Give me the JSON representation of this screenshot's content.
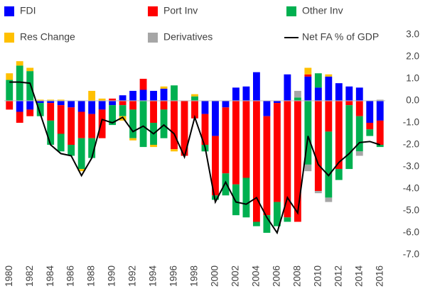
{
  "chart_data": {
    "type": "bar",
    "x": [
      1980,
      1981,
      1982,
      1983,
      1984,
      1985,
      1986,
      1987,
      1988,
      1989,
      1990,
      1991,
      1992,
      1993,
      1994,
      1995,
      1996,
      1997,
      1998,
      1999,
      2000,
      2001,
      2002,
      2003,
      2004,
      2005,
      2006,
      2007,
      2008,
      2009,
      2010,
      2011,
      2012,
      2013,
      2014,
      2015,
      2016
    ],
    "xlim": [
      1979.5,
      2016.5
    ],
    "xticks": [
      1980,
      1982,
      1984,
      1986,
      1988,
      1990,
      1992,
      1994,
      1996,
      1998,
      2000,
      2002,
      2004,
      2006,
      2008,
      2010,
      2012,
      2014,
      2016
    ],
    "ylim": [
      -7,
      3
    ],
    "yticks": [
      {
        "value": -7,
        "label": "-7.0"
      },
      {
        "value": -6,
        "label": "-6.0"
      },
      {
        "value": -5,
        "label": "-5.0"
      },
      {
        "value": -4,
        "label": "-4.0"
      },
      {
        "value": -3,
        "label": "-3.0"
      },
      {
        "value": -2,
        "label": "-2.0"
      },
      {
        "value": -1,
        "label": "-1.0"
      },
      {
        "value": 0,
        "label": "0.0"
      },
      {
        "value": 1,
        "label": "1.0"
      },
      {
        "value": 2,
        "label": "2.0"
      },
      {
        "value": 3,
        "label": "3.0"
      }
    ],
    "y_axis_side": "right",
    "series": [
      {
        "name": "FDI",
        "type": "bar",
        "color": "#0000ff",
        "values": [
          0,
          -0.5,
          -0.4,
          -0.1,
          -0.1,
          -0.2,
          -0.3,
          -0.5,
          -0.6,
          -0.4,
          -0.2,
          0.25,
          0.45,
          0.5,
          0.45,
          0.55,
          0,
          0,
          0,
          -0.6,
          -1.6,
          -0.3,
          0.6,
          0.65,
          1.3,
          -0.7,
          -0.1,
          1.2,
          0,
          1.1,
          0.6,
          1.1,
          0.8,
          0.65,
          0.6,
          -1.0,
          -0.9
        ]
      },
      {
        "name": "Port Inv",
        "type": "bar",
        "color": "#ff0000",
        "values": [
          -0.4,
          -0.5,
          -0.3,
          0,
          -0.8,
          -1.3,
          -1.7,
          -1.2,
          -1.1,
          -1.3,
          0.1,
          -0.2,
          -0.4,
          0.5,
          -1.0,
          -0.4,
          -2.2,
          -2.5,
          -0.8,
          -1.4,
          -2.7,
          -3.0,
          -3.8,
          -3.5,
          -5.5,
          -4.5,
          -4.5,
          -5.3,
          -5.5,
          0.1,
          -4.1,
          -1.4,
          -3.1,
          -0.2,
          -0.7,
          -0.3,
          -1.1
        ]
      },
      {
        "name": "Other Inv",
        "type": "bar",
        "color": "#00b050",
        "values": [
          0.95,
          1.6,
          1.35,
          -0.6,
          -1.1,
          -0.8,
          -0.5,
          -1.4,
          -0.9,
          0,
          -0.9,
          -0.5,
          -1.3,
          -2.1,
          -1.0,
          -1.3,
          0.7,
          0,
          0.2,
          -0.3,
          -0.2,
          -1.0,
          -1.4,
          -1.8,
          -0.2,
          -0.8,
          -1.1,
          -0.2,
          0.15,
          -2.9,
          0.65,
          -3.0,
          -0.5,
          -2.9,
          -1.6,
          -0.3,
          -0.1
        ]
      },
      {
        "name": "Res Change",
        "type": "bar",
        "color": "#ffc000",
        "values": [
          0.3,
          0.2,
          0.15,
          0.05,
          0.05,
          0.05,
          0,
          -0.1,
          0.45,
          0.1,
          0,
          -0.2,
          -0.1,
          0,
          -0.1,
          0.1,
          -0.1,
          0,
          0.1,
          0,
          0,
          0,
          0,
          0,
          0,
          0,
          0,
          0,
          0,
          0.3,
          0,
          0.1,
          0,
          0,
          0,
          0,
          0
        ]
      },
      {
        "name": "Derivatives",
        "type": "bar",
        "color": "#a6a6a6",
        "values": [
          0,
          0,
          0,
          0,
          0,
          0,
          0,
          0,
          0,
          0,
          0,
          0,
          0,
          0,
          0,
          0,
          0,
          0,
          0,
          0,
          0,
          0,
          0,
          0,
          0,
          0,
          0,
          0,
          0.3,
          -0.3,
          -0.1,
          -0.2,
          0,
          0,
          -0.2,
          0,
          0.05
        ]
      },
      {
        "name": "Net FA % of GDP",
        "type": "line",
        "color": "#000000",
        "values": [
          0.85,
          0.85,
          0.8,
          -0.6,
          -2.0,
          -2.4,
          -2.5,
          -3.4,
          -2.6,
          -0.85,
          -1.0,
          -0.75,
          -1.4,
          -1.15,
          -1.5,
          -1.1,
          -1.5,
          -2.55,
          -0.75,
          -2.1,
          -4.6,
          -3.7,
          -4.6,
          -4.7,
          -4.4,
          -5.3,
          -6.0,
          -4.4,
          -5.1,
          -1.6,
          -2.9,
          -3.4,
          -2.8,
          -2.4,
          -1.9,
          -1.85,
          -2.0
        ]
      }
    ]
  }
}
